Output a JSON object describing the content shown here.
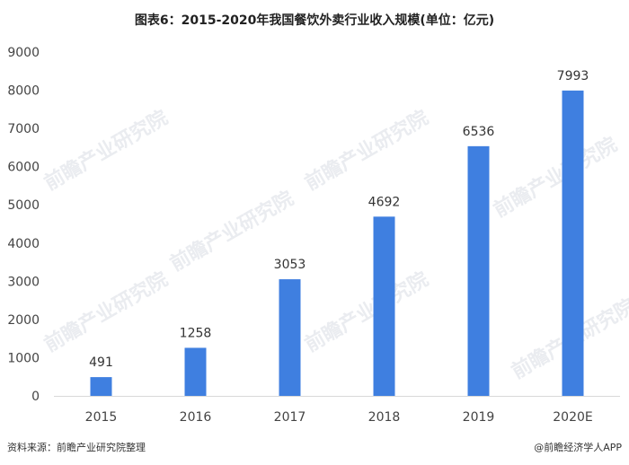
{
  "title": "图表6：2015-2020年我国餐饮外卖行业收入规模(单位：亿元)",
  "footer": {
    "source": "资料来源：前瞻产业研究院整理",
    "brand": "@前瞻经济学人APP"
  },
  "watermark": "前瞻产业研究院",
  "colors": {
    "bar": "#3f7fe0",
    "axis": "#d9d9d9"
  },
  "chart_data": {
    "type": "bar",
    "categories": [
      "2015",
      "2016",
      "2017",
      "2018",
      "2019",
      "2020E"
    ],
    "values": [
      491,
      1258,
      3053,
      4692,
      6536,
      7993
    ],
    "data_labels": [
      "491",
      "1258",
      "3053",
      "4692",
      "6536",
      "7993"
    ],
    "yticks": [
      0,
      1000,
      2000,
      3000,
      4000,
      5000,
      6000,
      7000,
      8000,
      9000
    ],
    "ylim": [
      0,
      9000
    ],
    "grid": false,
    "legend": "none"
  }
}
